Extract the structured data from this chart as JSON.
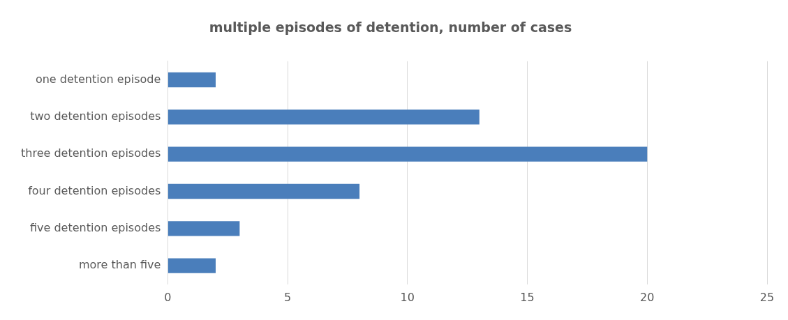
{
  "chart_data": {
    "type": "bar",
    "orientation": "horizontal",
    "title": "multiple episodes of detention, number of cases",
    "categories": [
      "one detention episode",
      "two detention episodes",
      "three detention episodes",
      "four detention episodes",
      "five detention episodes",
      "more than five"
    ],
    "values": [
      2,
      13,
      20,
      8,
      3,
      2
    ],
    "color": "#4a7ebb",
    "xlim": [
      0,
      25
    ],
    "xticks": [
      0,
      5,
      10,
      15,
      20,
      25
    ],
    "grid": "x",
    "legend": false
  }
}
